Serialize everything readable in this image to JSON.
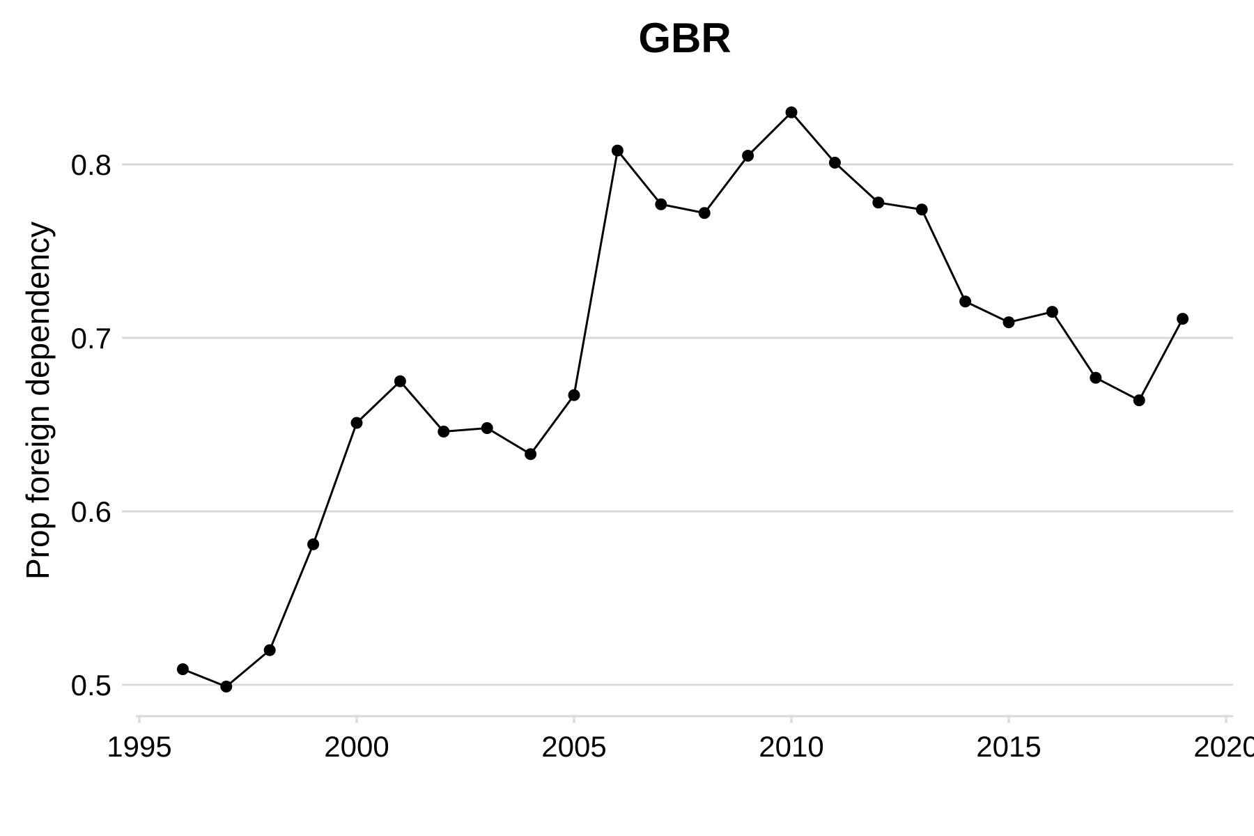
{
  "chart_data": {
    "type": "line",
    "title": "GBR",
    "xlabel": "",
    "ylabel": "Prop foreign dependency",
    "xlim": [
      1995,
      2020
    ],
    "ylim": [
      0.5,
      0.83
    ],
    "xticks": [
      1995,
      2000,
      2005,
      2010,
      2015,
      2020
    ],
    "xtick_labels": [
      "1995",
      "2000",
      "2005",
      "2010",
      "2015",
      "2020"
    ],
    "yticks": [
      0.5,
      0.6,
      0.7,
      0.8
    ],
    "ytick_labels": [
      "0.5",
      "0.6",
      "0.7",
      "0.8"
    ],
    "grid": "horizontal",
    "legend": "none",
    "colors": {
      "series": "#000000",
      "grid": "#d9d9d9"
    },
    "x": [
      1996,
      1997,
      1998,
      1999,
      2000,
      2001,
      2002,
      2003,
      2004,
      2005,
      2006,
      2007,
      2008,
      2009,
      2010,
      2011,
      2012,
      2013,
      2014,
      2015,
      2016,
      2017,
      2018,
      2019
    ],
    "series": [
      {
        "values": [
          0.509,
          0.499,
          0.52,
          0.581,
          0.651,
          0.675,
          0.646,
          0.648,
          0.633,
          0.667,
          0.808,
          0.777,
          0.772,
          0.805,
          0.83,
          0.801,
          0.778,
          0.774,
          0.721,
          0.709,
          0.715,
          0.677,
          0.664,
          0.711
        ]
      }
    ]
  }
}
